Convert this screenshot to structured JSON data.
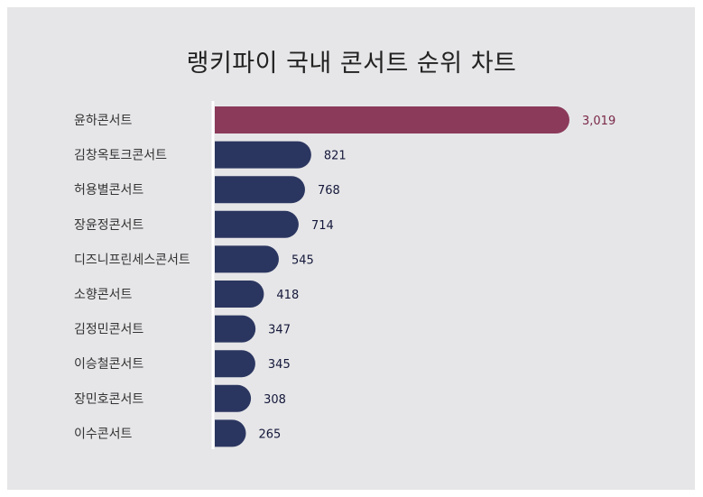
{
  "chart_data": {
    "type": "bar",
    "orientation": "horizontal",
    "title": "랭키파이 국내 콘서트 순위 차트",
    "categories": [
      "윤하콘서트",
      "김창옥토크콘서트",
      "허용별콘서트",
      "장윤정콘서트",
      "디즈니프린세스콘서트",
      "소향콘서트",
      "김정민콘서트",
      "이승철콘서트",
      "장민호콘서트",
      "이수콘서트"
    ],
    "values": [
      3019,
      821,
      768,
      714,
      545,
      418,
      347,
      345,
      308,
      265
    ],
    "value_labels": [
      "3,019",
      "821",
      "768",
      "714",
      "545",
      "418",
      "347",
      "345",
      "308",
      "265"
    ],
    "highlight_color": "#8b3a5a",
    "bar_color": "#2b3660",
    "highlight_label_color": "#7a2848",
    "label_color": "#14183a"
  }
}
